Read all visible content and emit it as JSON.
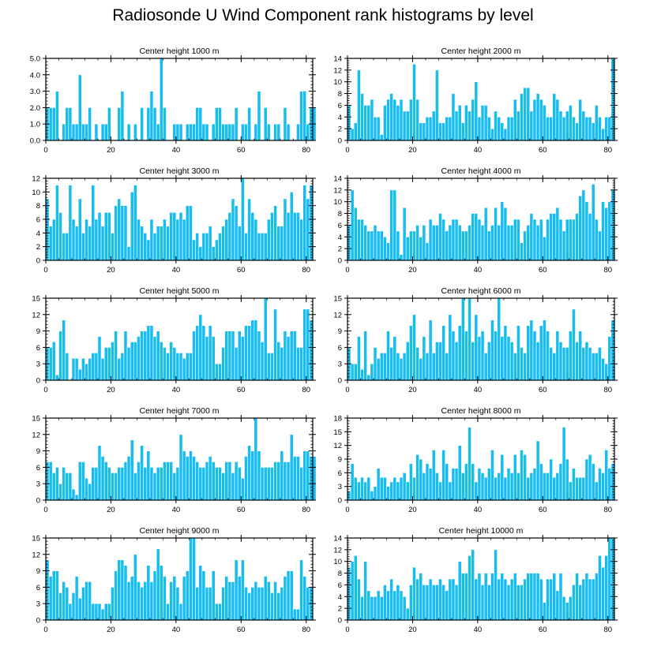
{
  "title": "Radiosonde U Wind Component rank histograms by level",
  "colors": {
    "bar": "#18bdf0",
    "bar_edge": "#ffffff",
    "axis": "#000000"
  },
  "chart_data": [
    {
      "type": "bar",
      "title": "Center height 1000 m",
      "x_start": 0,
      "xlim": [
        0,
        82
      ],
      "xticks": [
        0,
        20,
        40,
        60,
        80
      ],
      "ylim": [
        0,
        5
      ],
      "yticks": [
        0,
        1,
        2,
        3,
        4,
        5
      ],
      "ytick_labels": [
        "0.0",
        "1.0",
        "2.0",
        "3.0",
        "4.0",
        "5.0"
      ],
      "values": [
        2,
        2,
        2,
        3,
        0,
        1,
        2,
        2,
        1,
        1,
        4,
        1,
        1,
        2,
        0,
        1,
        0,
        1,
        1,
        2,
        0,
        0,
        2,
        3,
        0,
        1,
        0,
        1,
        0,
        2,
        0,
        2,
        3,
        2,
        1,
        5,
        2,
        0,
        0,
        1,
        1,
        1,
        0,
        1,
        1,
        1,
        2,
        2,
        1,
        1,
        0,
        1,
        2,
        2,
        1,
        1,
        1,
        1,
        2,
        0,
        1,
        1,
        2,
        0,
        1,
        3,
        0,
        2,
        1,
        0,
        1,
        1,
        0,
        2,
        1,
        0,
        0,
        1,
        3,
        3,
        1,
        2,
        2
      ]
    },
    {
      "type": "bar",
      "title": "Center height 2000 m",
      "x_start": 0,
      "xlim": [
        0,
        82
      ],
      "xticks": [
        0,
        20,
        40,
        60,
        80
      ],
      "ylim": [
        0,
        14
      ],
      "yticks": [
        0,
        2,
        4,
        6,
        8,
        10,
        12,
        14
      ],
      "ytick_labels": [
        "0",
        "2",
        "4",
        "6",
        "8",
        "10",
        "12",
        "14"
      ],
      "values": [
        6,
        2,
        3,
        12,
        8,
        6,
        6,
        7,
        4,
        4,
        1,
        6,
        7,
        8,
        7,
        6,
        7,
        5,
        5,
        7,
        13,
        7,
        3,
        3,
        4,
        4,
        5,
        12,
        3,
        3,
        4,
        4,
        8,
        5,
        6,
        3,
        6,
        5,
        7,
        10,
        4,
        6,
        6,
        4,
        2,
        5,
        4,
        3,
        2,
        4,
        4,
        7,
        5,
        8,
        9,
        9,
        5,
        7,
        8,
        7,
        6,
        4,
        4,
        8,
        7,
        5,
        4,
        5,
        6,
        4,
        3,
        7,
        5,
        4,
        4,
        3,
        6,
        4,
        2,
        4,
        4,
        14
      ]
    },
    {
      "type": "bar",
      "title": "Center height 3000 m",
      "x_start": 0,
      "xlim": [
        0,
        82
      ],
      "xticks": [
        0,
        20,
        40,
        60,
        80
      ],
      "ylim": [
        0,
        12
      ],
      "yticks": [
        0,
        2,
        4,
        6,
        8,
        10,
        12
      ],
      "ytick_labels": [
        "0",
        "2",
        "4",
        "6",
        "8",
        "10",
        "12"
      ],
      "values": [
        9,
        5,
        6,
        11,
        7,
        4,
        4,
        11,
        6,
        5,
        9,
        4,
        6,
        5,
        11,
        6,
        7,
        5,
        7,
        7,
        4,
        8,
        9,
        8,
        8,
        2,
        10,
        11,
        6,
        5,
        4,
        3,
        6,
        4,
        5,
        5,
        6,
        5,
        7,
        7,
        6,
        7,
        6,
        8,
        8,
        3,
        4,
        2,
        4,
        4,
        5,
        2,
        3,
        4,
        5,
        6,
        7,
        9,
        8,
        5,
        12,
        4,
        9,
        7,
        6,
        4,
        4,
        4,
        6,
        7,
        8,
        5,
        5,
        9,
        7,
        10,
        7,
        7,
        6,
        11,
        9,
        11
      ]
    },
    {
      "type": "bar",
      "title": "Center height 4000 m",
      "x_start": 0,
      "xlim": [
        0,
        82
      ],
      "xticks": [
        0,
        20,
        40,
        60,
        80
      ],
      "ylim": [
        0,
        14
      ],
      "yticks": [
        0,
        2,
        4,
        6,
        8,
        10,
        12,
        14
      ],
      "ytick_labels": [
        "0",
        "2",
        "4",
        "6",
        "8",
        "10",
        "12",
        "14"
      ],
      "values": [
        6,
        12,
        9,
        7,
        7,
        6,
        5,
        5,
        6,
        5,
        5,
        4,
        3,
        12,
        12,
        5,
        1,
        9,
        4,
        5,
        5,
        6,
        4,
        6,
        3,
        7,
        6,
        6,
        8,
        7,
        5,
        6,
        7,
        7,
        6,
        5,
        5,
        6,
        8,
        8,
        7,
        6,
        9,
        5,
        6,
        9,
        6,
        10,
        9,
        6,
        6,
        7,
        7,
        3,
        5,
        6,
        8,
        7,
        6,
        7,
        4,
        7,
        8,
        8,
        9,
        7,
        5,
        7,
        7,
        7,
        8,
        11,
        12,
        10,
        8,
        13,
        7,
        5,
        10,
        9,
        10,
        12
      ]
    },
    {
      "type": "bar",
      "title": "Center height 5000 m",
      "x_start": 0,
      "xlim": [
        0,
        82
      ],
      "xticks": [
        0,
        20,
        40,
        60,
        80
      ],
      "ylim": [
        0,
        15
      ],
      "yticks": [
        0,
        3,
        6,
        9,
        12,
        15
      ],
      "ytick_labels": [
        "0",
        "3",
        "6",
        "9",
        "12",
        "15"
      ],
      "values": [
        6,
        6,
        7,
        1,
        9,
        11,
        5,
        0,
        4,
        4,
        2,
        4,
        3,
        4,
        5,
        5,
        8,
        4,
        6,
        6,
        7,
        9,
        4,
        5,
        9,
        6,
        7,
        7,
        8,
        9,
        9,
        10,
        10,
        8,
        9,
        7,
        6,
        5,
        7,
        6,
        5,
        5,
        4,
        5,
        5,
        9,
        10,
        12,
        10,
        8,
        10,
        8,
        3,
        3,
        6,
        9,
        9,
        9,
        6,
        9,
        8,
        10,
        10,
        11,
        11,
        9,
        7,
        15,
        5,
        5,
        13,
        7,
        6,
        9,
        8,
        9,
        9,
        6,
        6,
        13,
        13,
        11
      ]
    },
    {
      "type": "bar",
      "title": "Center height 6000 m",
      "x_start": 0,
      "xlim": [
        0,
        82
      ],
      "xticks": [
        0,
        20,
        40,
        60,
        80
      ],
      "ylim": [
        0,
        15
      ],
      "yticks": [
        0,
        3,
        6,
        9,
        12,
        15
      ],
      "ytick_labels": [
        "0",
        "3",
        "6",
        "9",
        "12",
        "15"
      ],
      "values": [
        6,
        3,
        3,
        8,
        2,
        9,
        1,
        3,
        6,
        4,
        5,
        5,
        9,
        6,
        8,
        5,
        4,
        5,
        7,
        10,
        12,
        6,
        4,
        8,
        5,
        11,
        5,
        7,
        7,
        10,
        5,
        12,
        9,
        7,
        10,
        15,
        9,
        15,
        7,
        12,
        8,
        9,
        5,
        7,
        11,
        9,
        15,
        8,
        10,
        8,
        7,
        5,
        10,
        6,
        5,
        10,
        11,
        9,
        7,
        10,
        11,
        9,
        6,
        5,
        9,
        7,
        6,
        6,
        9,
        13,
        7,
        9,
        6,
        7,
        6,
        5,
        5,
        6,
        4,
        3,
        8,
        11
      ]
    },
    {
      "type": "bar",
      "title": "Center height 7000 m",
      "x_start": 0,
      "xlim": [
        0,
        82
      ],
      "xticks": [
        0,
        20,
        40,
        60,
        80
      ],
      "ylim": [
        0,
        15
      ],
      "yticks": [
        0,
        3,
        6,
        9,
        12,
        15
      ],
      "ytick_labels": [
        "0",
        "3",
        "6",
        "9",
        "12",
        "15"
      ],
      "values": [
        7,
        7,
        5,
        6,
        3,
        6,
        5,
        5,
        2,
        1,
        7,
        7,
        4,
        3,
        6,
        6,
        10,
        8,
        7,
        6,
        5,
        5,
        6,
        6,
        7,
        8,
        11,
        5,
        7,
        10,
        6,
        9,
        6,
        5,
        6,
        6,
        7,
        7,
        7,
        5,
        6,
        12,
        9,
        8,
        9,
        8,
        7,
        6,
        6,
        7,
        8,
        7,
        6,
        6,
        5,
        7,
        7,
        5,
        7,
        6,
        4,
        8,
        10,
        9,
        15,
        9,
        6,
        6,
        6,
        6,
        7,
        7,
        9,
        7,
        7,
        12,
        8,
        8,
        6,
        9,
        9,
        8,
        8
      ]
    },
    {
      "type": "bar",
      "title": "Center height 8000 m",
      "x_start": 0,
      "xlim": [
        0,
        82
      ],
      "xticks": [
        0,
        20,
        40,
        60,
        80
      ],
      "ylim": [
        0,
        18
      ],
      "yticks": [
        0,
        3,
        6,
        9,
        12,
        15,
        18
      ],
      "ytick_labels": [
        "0",
        "3",
        "6",
        "9",
        "12",
        "15",
        "18"
      ],
      "values": [
        2,
        8,
        5,
        4,
        5,
        4,
        5,
        2,
        3,
        7,
        5,
        5,
        3,
        4,
        5,
        4,
        5,
        6,
        4,
        8,
        5,
        10,
        9,
        6,
        8,
        7,
        11,
        6,
        4,
        11,
        8,
        4,
        7,
        7,
        12,
        6,
        8,
        16,
        8,
        4,
        7,
        6,
        5,
        7,
        11,
        5,
        6,
        10,
        5,
        7,
        6,
        10,
        6,
        11,
        10,
        5,
        6,
        7,
        13,
        8,
        6,
        6,
        9,
        5,
        6,
        8,
        16,
        9,
        4,
        7,
        5,
        5,
        5,
        9,
        10,
        8,
        4,
        7,
        6,
        11,
        7,
        8
      ]
    },
    {
      "type": "bar",
      "title": "Center height 9000 m",
      "x_start": 0,
      "xlim": [
        0,
        82
      ],
      "xticks": [
        0,
        20,
        40,
        60,
        80
      ],
      "ylim": [
        0,
        15
      ],
      "yticks": [
        0,
        3,
        6,
        9,
        12,
        15
      ],
      "ytick_labels": [
        "0",
        "3",
        "6",
        "9",
        "12",
        "15"
      ],
      "values": [
        11,
        8,
        9,
        9,
        5,
        7,
        6,
        3,
        5,
        8,
        4,
        6,
        7,
        7,
        3,
        3,
        3,
        2,
        3,
        3,
        6,
        9,
        11,
        11,
        10,
        7,
        8,
        12,
        7,
        6,
        7,
        10,
        7,
        9,
        13,
        10,
        8,
        3,
        7,
        8,
        6,
        3,
        8,
        9,
        15,
        15,
        6,
        10,
        9,
        6,
        6,
        9,
        3,
        3,
        6,
        8,
        7,
        7,
        11,
        8,
        11,
        6,
        5,
        6,
        7,
        6,
        6,
        8,
        7,
        5,
        7,
        5,
        6,
        8,
        9,
        9,
        2,
        2,
        11,
        8,
        6,
        6
      ]
    },
    {
      "type": "bar",
      "title": "Center height 10000 m",
      "x_start": 0,
      "xlim": [
        0,
        82
      ],
      "xticks": [
        0,
        20,
        40,
        60,
        80
      ],
      "ylim": [
        0,
        14
      ],
      "yticks": [
        0,
        2,
        4,
        6,
        8,
        10,
        12,
        14
      ],
      "ytick_labels": [
        "0",
        "2",
        "4",
        "6",
        "8",
        "10",
        "12",
        "14"
      ],
      "values": [
        9,
        10,
        11,
        7,
        4,
        10,
        5,
        4,
        4,
        5,
        4,
        6,
        5,
        7,
        5,
        6,
        5,
        4,
        2,
        6,
        9,
        7,
        8,
        6,
        6,
        7,
        6,
        6,
        7,
        6,
        5,
        7,
        7,
        6,
        10,
        8,
        8,
        11,
        12,
        7,
        8,
        6,
        8,
        6,
        8,
        12,
        7,
        8,
        7,
        6,
        7,
        8,
        6,
        6,
        7,
        8,
        8,
        8,
        8,
        7,
        3,
        7,
        7,
        8,
        5,
        8,
        4,
        3,
        4,
        6,
        8,
        6,
        7,
        8,
        7,
        7,
        8,
        11,
        9,
        11,
        14,
        14
      ]
    }
  ]
}
